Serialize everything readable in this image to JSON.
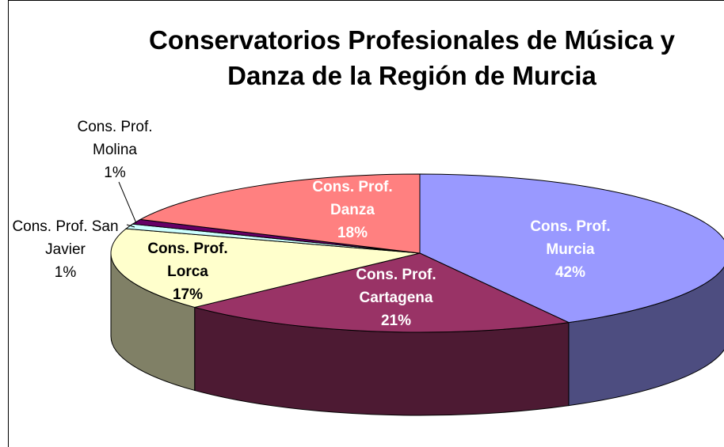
{
  "chart_data": {
    "type": "pie3d",
    "title": "Conservatorios Profesionales de Música y Danza de la Región de Murcia",
    "categories": [
      "Cons. Prof. Murcia",
      "Cons. Prof. Cartagena",
      "Cons. Prof. Lorca",
      "Cons. Prof. San Javier",
      "Cons. Prof. Molina",
      "Cons. Prof. Danza"
    ],
    "values": [
      42,
      21,
      17,
      1,
      1,
      18
    ],
    "value_labels": [
      "42%",
      "21%",
      "17%",
      "1%",
      "1%",
      "18%"
    ],
    "colors": [
      "#9999ff",
      "#993366",
      "#ffffcc",
      "#ccffff",
      "#660066",
      "#ff8080"
    ]
  }
}
